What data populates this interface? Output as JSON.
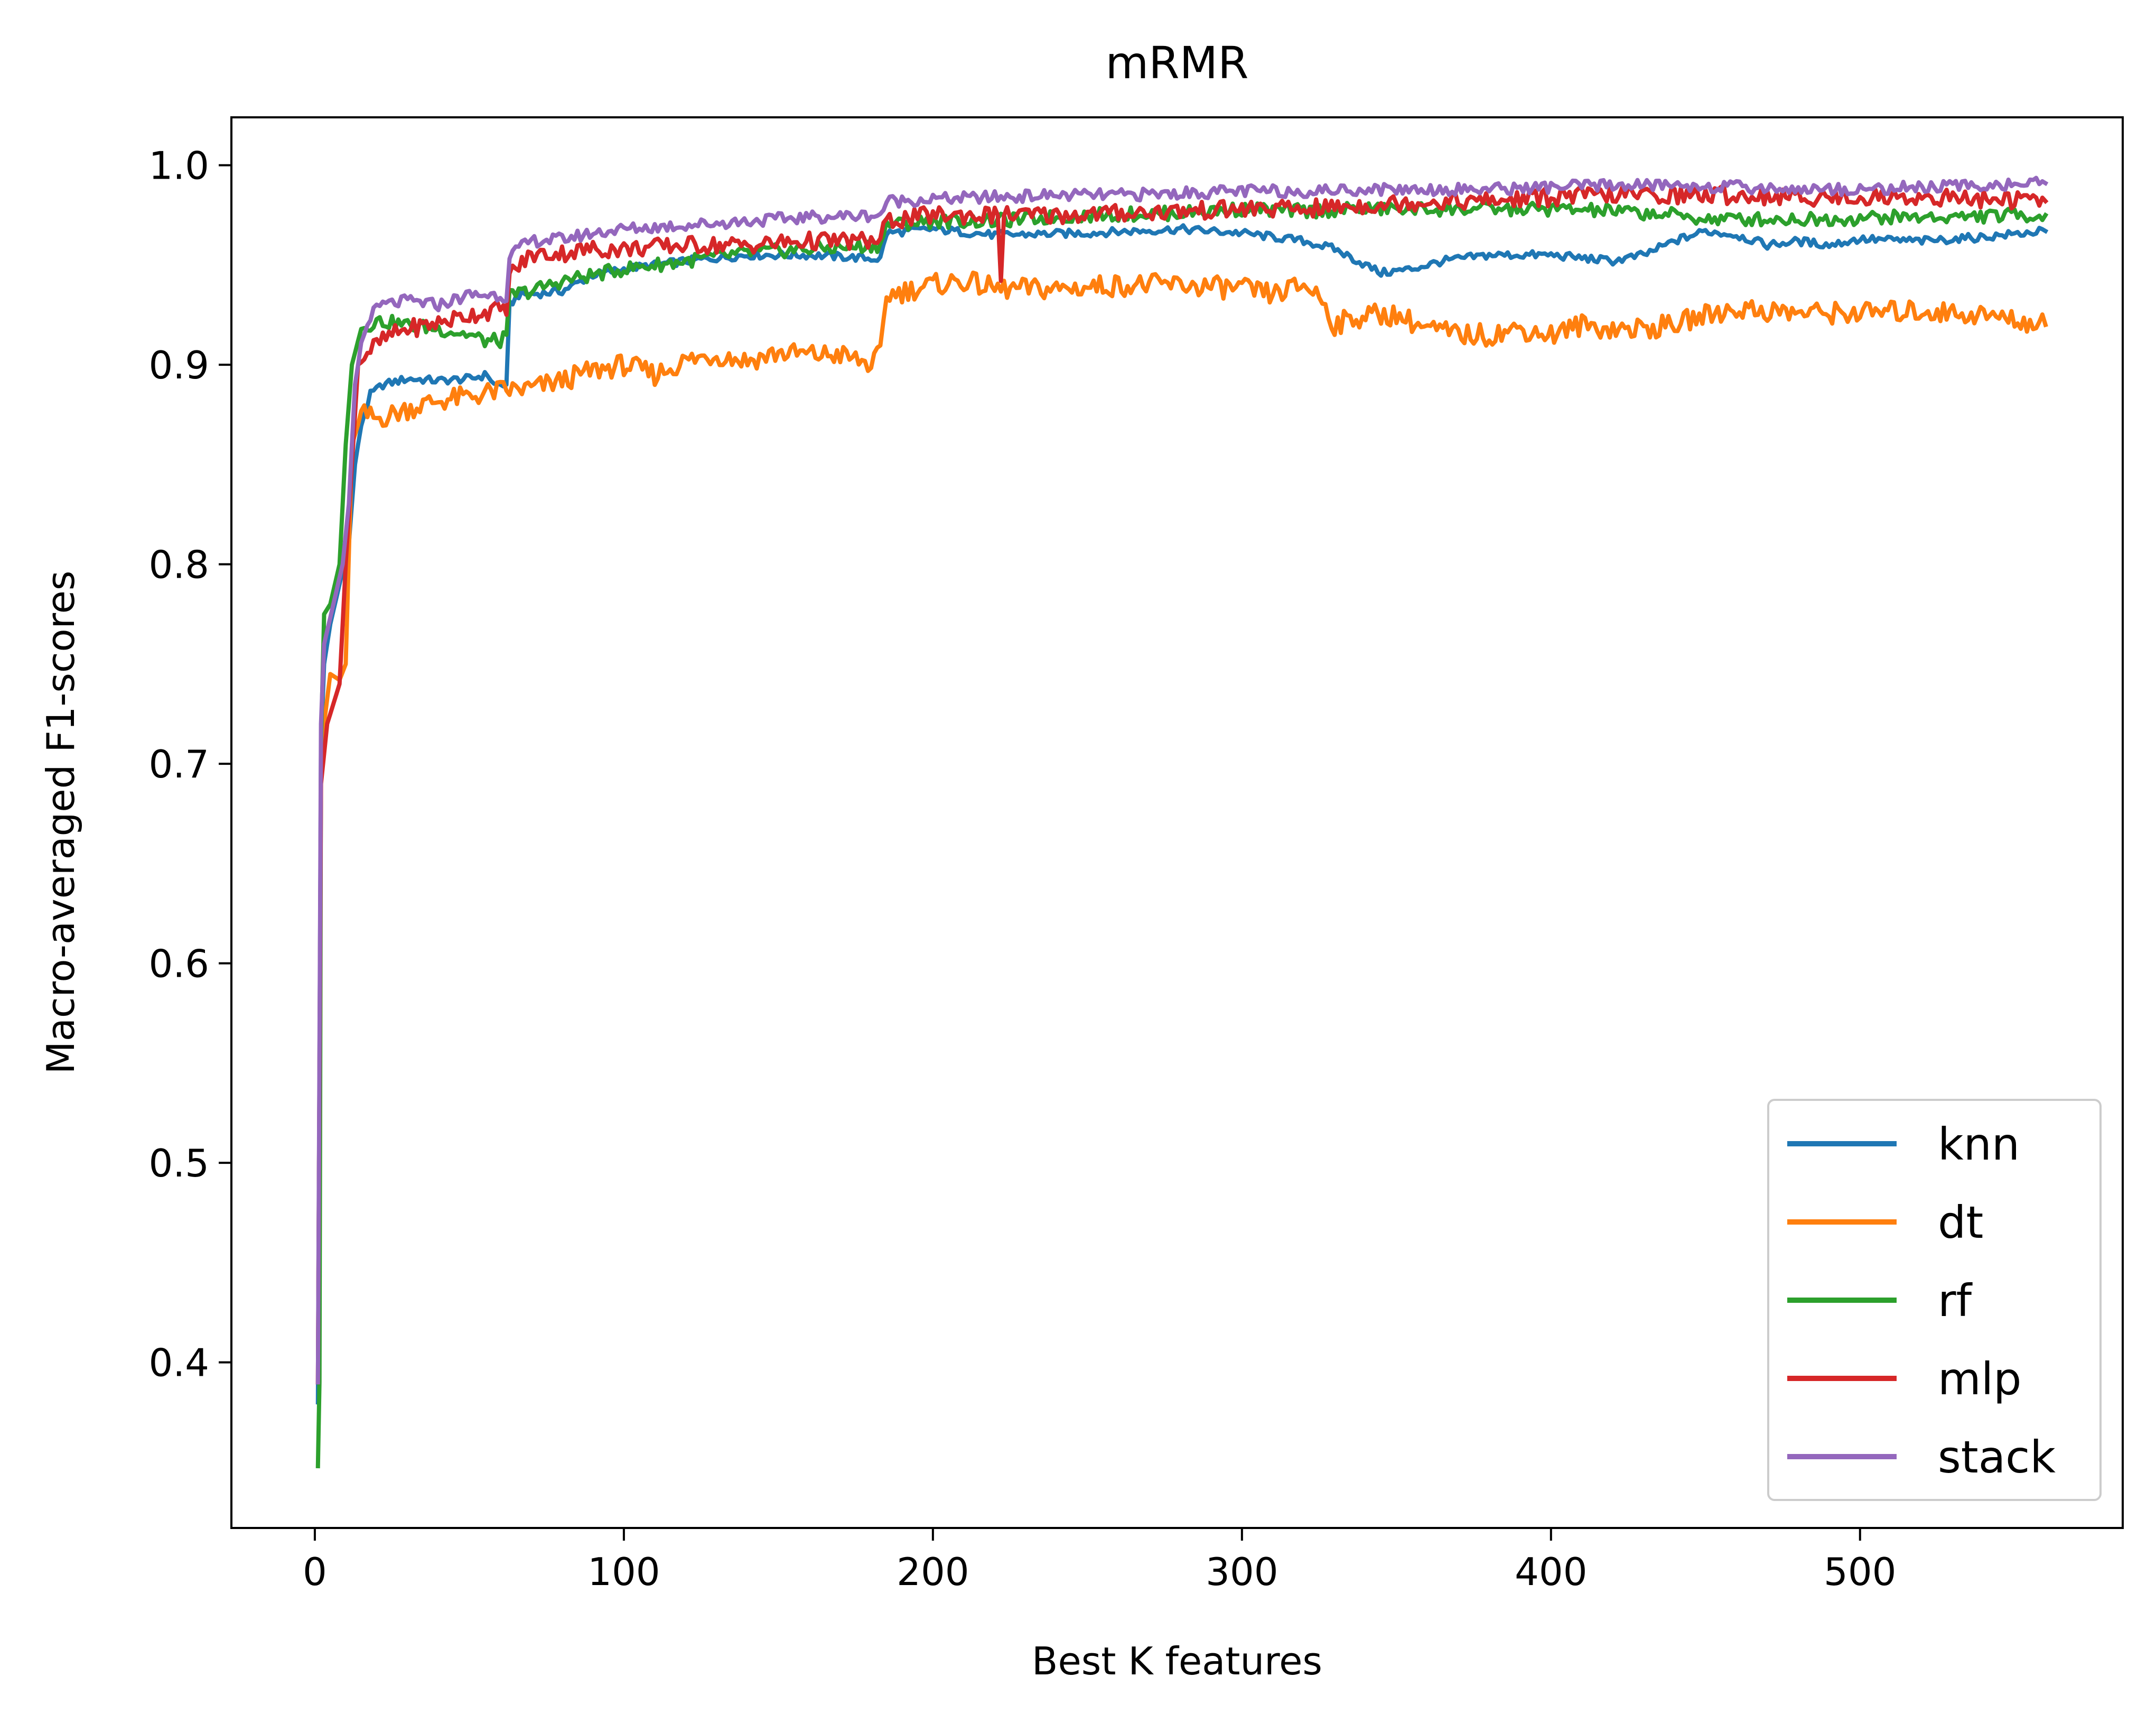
{
  "chart_data": {
    "type": "line",
    "title": "mRMR",
    "xlabel": "Best K features",
    "ylabel": "Macro-averaged F1-scores",
    "xlim": [
      -27,
      585
    ],
    "ylim": [
      0.317,
      1.024
    ],
    "xticks": [
      0,
      100,
      200,
      300,
      400,
      500
    ],
    "yticks": [
      0.4,
      0.5,
      0.6,
      0.7,
      0.8,
      0.9,
      1.0
    ],
    "ytick_labels": [
      "0.4",
      "0.5",
      "0.6",
      "0.7",
      "0.8",
      "0.9",
      "1.0"
    ],
    "grid": false,
    "legend_position": "lower right",
    "series": [
      {
        "name": "knn",
        "color": "#1f77b4",
        "points": [
          [
            1,
            0.38
          ],
          [
            2,
            0.71
          ],
          [
            3,
            0.75
          ],
          [
            5,
            0.77
          ],
          [
            8,
            0.79
          ],
          [
            11,
            0.81
          ],
          [
            13,
            0.85
          ],
          [
            15,
            0.87
          ],
          [
            18,
            0.885
          ],
          [
            22,
            0.89
          ],
          [
            30,
            0.893
          ],
          [
            40,
            0.892
          ],
          [
            50,
            0.893
          ],
          [
            56,
            0.895
          ],
          [
            58,
            0.89
          ],
          [
            62,
            0.89
          ],
          [
            63,
            0.93
          ],
          [
            66,
            0.935
          ],
          [
            75,
            0.936
          ],
          [
            80,
            0.937
          ],
          [
            90,
            0.945
          ],
          [
            100,
            0.948
          ],
          [
            120,
            0.952
          ],
          [
            140,
            0.955
          ],
          [
            160,
            0.955
          ],
          [
            183,
            0.953
          ],
          [
            185,
            0.966
          ],
          [
            200,
            0.968
          ],
          [
            220,
            0.965
          ],
          [
            250,
            0.966
          ],
          [
            280,
            0.968
          ],
          [
            300,
            0.966
          ],
          [
            320,
            0.962
          ],
          [
            330,
            0.958
          ],
          [
            340,
            0.95
          ],
          [
            345,
            0.946
          ],
          [
            355,
            0.948
          ],
          [
            365,
            0.952
          ],
          [
            380,
            0.955
          ],
          [
            400,
            0.955
          ],
          [
            420,
            0.952
          ],
          [
            430,
            0.955
          ],
          [
            440,
            0.962
          ],
          [
            450,
            0.967
          ],
          [
            460,
            0.965
          ],
          [
            470,
            0.96
          ],
          [
            480,
            0.962
          ],
          [
            490,
            0.96
          ],
          [
            500,
            0.963
          ],
          [
            520,
            0.962
          ],
          [
            540,
            0.964
          ],
          [
            560,
            0.967
          ]
        ]
      },
      {
        "name": "dt",
        "color": "#ff7f0e",
        "points": [
          [
            1,
            0.39
          ],
          [
            2,
            0.7
          ],
          [
            3,
            0.72
          ],
          [
            5,
            0.745
          ],
          [
            8,
            0.742
          ],
          [
            10,
            0.75
          ],
          [
            12,
            0.86
          ],
          [
            15,
            0.875
          ],
          [
            20,
            0.873
          ],
          [
            25,
            0.875
          ],
          [
            30,
            0.878
          ],
          [
            40,
            0.882
          ],
          [
            50,
            0.884
          ],
          [
            60,
            0.887
          ],
          [
            70,
            0.888
          ],
          [
            80,
            0.892
          ],
          [
            90,
            0.897
          ],
          [
            100,
            0.9
          ],
          [
            110,
            0.895
          ],
          [
            120,
            0.902
          ],
          [
            130,
            0.905
          ],
          [
            140,
            0.902
          ],
          [
            150,
            0.906
          ],
          [
            160,
            0.905
          ],
          [
            170,
            0.905
          ],
          [
            180,
            0.9
          ],
          [
            183,
            0.905
          ],
          [
            185,
            0.935
          ],
          [
            200,
            0.94
          ],
          [
            210,
            0.942
          ],
          [
            220,
            0.938
          ],
          [
            240,
            0.938
          ],
          [
            260,
            0.94
          ],
          [
            280,
            0.94
          ],
          [
            300,
            0.938
          ],
          [
            310,
            0.935
          ],
          [
            320,
            0.94
          ],
          [
            325,
            0.935
          ],
          [
            330,
            0.92
          ],
          [
            340,
            0.925
          ],
          [
            350,
            0.925
          ],
          [
            360,
            0.918
          ],
          [
            370,
            0.915
          ],
          [
            380,
            0.915
          ],
          [
            390,
            0.918
          ],
          [
            400,
            0.915
          ],
          [
            410,
            0.92
          ],
          [
            420,
            0.918
          ],
          [
            430,
            0.918
          ],
          [
            440,
            0.92
          ],
          [
            450,
            0.925
          ],
          [
            460,
            0.928
          ],
          [
            480,
            0.926
          ],
          [
            500,
            0.926
          ],
          [
            520,
            0.927
          ],
          [
            540,
            0.925
          ],
          [
            560,
            0.92
          ]
        ]
      },
      {
        "name": "rf",
        "color": "#2ca02c",
        "points": [
          [
            1,
            0.348
          ],
          [
            1.5,
            0.39
          ],
          [
            2,
            0.71
          ],
          [
            3,
            0.775
          ],
          [
            5,
            0.78
          ],
          [
            8,
            0.8
          ],
          [
            10,
            0.86
          ],
          [
            12,
            0.9
          ],
          [
            15,
            0.918
          ],
          [
            20,
            0.922
          ],
          [
            30,
            0.92
          ],
          [
            40,
            0.918
          ],
          [
            50,
            0.915
          ],
          [
            55,
            0.912
          ],
          [
            60,
            0.912
          ],
          [
            62,
            0.915
          ],
          [
            63,
            0.935
          ],
          [
            70,
            0.937
          ],
          [
            80,
            0.942
          ],
          [
            90,
            0.945
          ],
          [
            100,
            0.948
          ],
          [
            120,
            0.952
          ],
          [
            140,
            0.956
          ],
          [
            160,
            0.958
          ],
          [
            183,
            0.96
          ],
          [
            185,
            0.97
          ],
          [
            200,
            0.972
          ],
          [
            220,
            0.972
          ],
          [
            250,
            0.975
          ],
          [
            280,
            0.976
          ],
          [
            300,
            0.978
          ],
          [
            320,
            0.977
          ],
          [
            340,
            0.978
          ],
          [
            360,
            0.978
          ],
          [
            380,
            0.978
          ],
          [
            400,
            0.978
          ],
          [
            420,
            0.977
          ],
          [
            440,
            0.975
          ],
          [
            450,
            0.973
          ],
          [
            470,
            0.973
          ],
          [
            490,
            0.973
          ],
          [
            510,
            0.974
          ],
          [
            530,
            0.974
          ],
          [
            550,
            0.975
          ],
          [
            560,
            0.975
          ]
        ]
      },
      {
        "name": "mlp",
        "color": "#d62728",
        "points": [
          [
            1,
            0.39
          ],
          [
            2,
            0.69
          ],
          [
            4,
            0.72
          ],
          [
            6,
            0.73
          ],
          [
            8,
            0.74
          ],
          [
            10,
            0.8
          ],
          [
            12,
            0.85
          ],
          [
            14,
            0.9
          ],
          [
            16,
            0.905
          ],
          [
            20,
            0.91
          ],
          [
            25,
            0.915
          ],
          [
            30,
            0.918
          ],
          [
            40,
            0.921
          ],
          [
            50,
            0.925
          ],
          [
            60,
            0.928
          ],
          [
            62,
            0.925
          ],
          [
            63,
            0.945
          ],
          [
            70,
            0.955
          ],
          [
            80,
            0.956
          ],
          [
            90,
            0.958
          ],
          [
            100,
            0.958
          ],
          [
            120,
            0.96
          ],
          [
            140,
            0.96
          ],
          [
            160,
            0.962
          ],
          [
            183,
            0.962
          ],
          [
            185,
            0.972
          ],
          [
            200,
            0.975
          ],
          [
            221,
            0.975
          ],
          [
            222,
            0.942
          ],
          [
            223,
            0.975
          ],
          [
            240,
            0.975
          ],
          [
            260,
            0.976
          ],
          [
            280,
            0.977
          ],
          [
            300,
            0.978
          ],
          [
            320,
            0.978
          ],
          [
            340,
            0.98
          ],
          [
            360,
            0.982
          ],
          [
            380,
            0.982
          ],
          [
            400,
            0.984
          ],
          [
            420,
            0.985
          ],
          [
            440,
            0.985
          ],
          [
            460,
            0.985
          ],
          [
            480,
            0.984
          ],
          [
            500,
            0.984
          ],
          [
            520,
            0.984
          ],
          [
            540,
            0.983
          ],
          [
            560,
            0.982
          ]
        ]
      },
      {
        "name": "stack",
        "color": "#9467bd",
        "points": [
          [
            1,
            0.39
          ],
          [
            2,
            0.72
          ],
          [
            3,
            0.76
          ],
          [
            6,
            0.78
          ],
          [
            9,
            0.8
          ],
          [
            11,
            0.83
          ],
          [
            13,
            0.89
          ],
          [
            15,
            0.91
          ],
          [
            18,
            0.925
          ],
          [
            22,
            0.93
          ],
          [
            30,
            0.932
          ],
          [
            40,
            0.93
          ],
          [
            50,
            0.935
          ],
          [
            60,
            0.935
          ],
          [
            62,
            0.932
          ],
          [
            63,
            0.955
          ],
          [
            70,
            0.962
          ],
          [
            80,
            0.963
          ],
          [
            90,
            0.966
          ],
          [
            100,
            0.968
          ],
          [
            120,
            0.97
          ],
          [
            140,
            0.972
          ],
          [
            160,
            0.974
          ],
          [
            183,
            0.975
          ],
          [
            185,
            0.982
          ],
          [
            200,
            0.983
          ],
          [
            220,
            0.984
          ],
          [
            240,
            0.985
          ],
          [
            260,
            0.985
          ],
          [
            280,
            0.986
          ],
          [
            300,
            0.987
          ],
          [
            320,
            0.987
          ],
          [
            340,
            0.988
          ],
          [
            360,
            0.988
          ],
          [
            380,
            0.988
          ],
          [
            400,
            0.989
          ],
          [
            420,
            0.99
          ],
          [
            440,
            0.99
          ],
          [
            460,
            0.989
          ],
          [
            480,
            0.988
          ],
          [
            500,
            0.988
          ],
          [
            520,
            0.989
          ],
          [
            540,
            0.99
          ],
          [
            560,
            0.991
          ]
        ]
      }
    ]
  }
}
